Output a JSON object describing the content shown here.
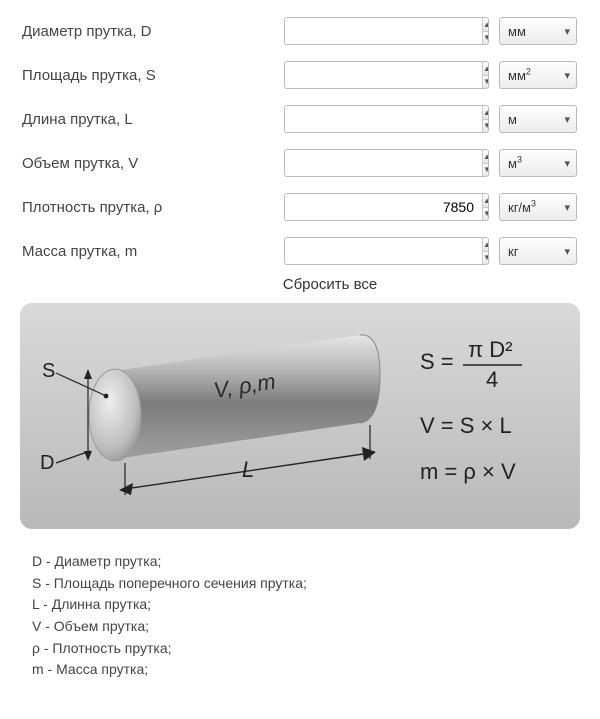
{
  "fields": [
    {
      "key": "diameter",
      "label": "Диаметр прутка, D",
      "value": "",
      "unit_html": "мм"
    },
    {
      "key": "area",
      "label": "Площадь прутка, S",
      "value": "",
      "unit_html": "мм<sup>2</sup>"
    },
    {
      "key": "length",
      "label": "Длина прутка, L",
      "value": "",
      "unit_html": "м"
    },
    {
      "key": "volume",
      "label": "Объем прутка, V",
      "value": "",
      "unit_html": "м<sup>3</sup>"
    },
    {
      "key": "density",
      "label": "Плотность прутка, ρ",
      "value": "7850",
      "unit_html": "кг/м<sup>3</sup>"
    },
    {
      "key": "mass",
      "label": "Масса прутка, m",
      "value": "",
      "unit_html": "кг"
    }
  ],
  "reset_label": "Сбросить все",
  "diagram": {
    "bg_gradient_top": "#d9d9d9",
    "bg_gradient_bottom": "#b9b9b9",
    "label_S": "S",
    "label_D": "D",
    "label_L": "L",
    "label_Vpm": "V, ρ,m",
    "formulas": {
      "s": {
        "lhs": "S =",
        "num": "π D²",
        "den": "4"
      },
      "v": "V = S × L",
      "m": "m = ρ × V"
    },
    "rod_color_light": "#d8d8d8",
    "rod_color_dark": "#7a7a7a",
    "rod_color_mid": "#a8a8a8",
    "stroke_color": "#222222",
    "text_color": "#222222"
  },
  "legend": [
    "D - Диаметр прутка;",
    "S - Площадь поперечного сечения прутка;",
    "L - Длинна прутка;",
    "V - Объем прутка;",
    "ρ - Плотность прутка;",
    "m - Масса прутка;"
  ]
}
